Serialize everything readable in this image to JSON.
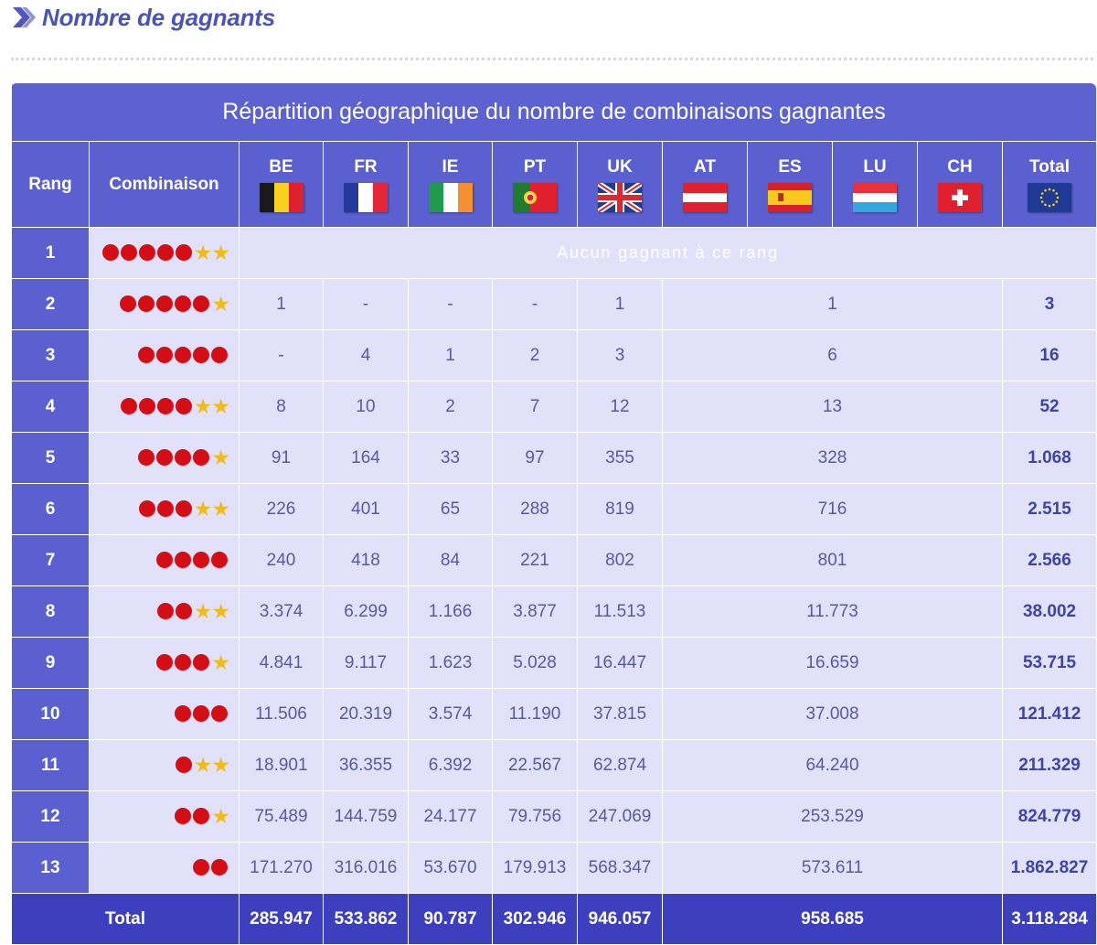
{
  "heading": {
    "text": "Nombre de gagnants"
  },
  "table": {
    "title": "Répartition géographique du nombre de combinaisons gagnantes",
    "col_rang": "Rang",
    "col_combinaison": "Combinaison",
    "countries": [
      {
        "code": "BE",
        "flag": "flag-belgium"
      },
      {
        "code": "FR",
        "flag": "flag-france"
      },
      {
        "code": "IE",
        "flag": "flag-ireland"
      },
      {
        "code": "PT",
        "flag": "flag-portugal"
      },
      {
        "code": "UK",
        "flag": "flag-uk"
      },
      {
        "code": "AT",
        "flag": "flag-austria"
      },
      {
        "code": "ES",
        "flag": "flag-spain"
      },
      {
        "code": "LU",
        "flag": "flag-luxembourg"
      },
      {
        "code": "CH",
        "flag": "flag-switzerland"
      }
    ],
    "col_total": "Total",
    "total_flag": "flag-eu",
    "no_winner_text": "Aucun gagnant à ce rang",
    "rows": [
      {
        "rang": "1",
        "balls": 5,
        "stars": 2,
        "none": true
      },
      {
        "rang": "2",
        "balls": 5,
        "stars": 1,
        "be": "1",
        "fr": "-",
        "ie": "-",
        "pt": "-",
        "uk": "1",
        "merged": "1",
        "total": "3"
      },
      {
        "rang": "3",
        "balls": 5,
        "stars": 0,
        "be": "-",
        "fr": "4",
        "ie": "1",
        "pt": "2",
        "uk": "3",
        "merged": "6",
        "total": "16"
      },
      {
        "rang": "4",
        "balls": 4,
        "stars": 2,
        "be": "8",
        "fr": "10",
        "ie": "2",
        "pt": "7",
        "uk": "12",
        "merged": "13",
        "total": "52"
      },
      {
        "rang": "5",
        "balls": 4,
        "stars": 1,
        "be": "91",
        "fr": "164",
        "ie": "33",
        "pt": "97",
        "uk": "355",
        "merged": "328",
        "total": "1.068"
      },
      {
        "rang": "6",
        "balls": 3,
        "stars": 2,
        "be": "226",
        "fr": "401",
        "ie": "65",
        "pt": "288",
        "uk": "819",
        "merged": "716",
        "total": "2.515"
      },
      {
        "rang": "7",
        "balls": 4,
        "stars": 0,
        "be": "240",
        "fr": "418",
        "ie": "84",
        "pt": "221",
        "uk": "802",
        "merged": "801",
        "total": "2.566"
      },
      {
        "rang": "8",
        "balls": 2,
        "stars": 2,
        "be": "3.374",
        "fr": "6.299",
        "ie": "1.166",
        "pt": "3.877",
        "uk": "11.513",
        "merged": "11.773",
        "total": "38.002"
      },
      {
        "rang": "9",
        "balls": 3,
        "stars": 1,
        "be": "4.841",
        "fr": "9.117",
        "ie": "1.623",
        "pt": "5.028",
        "uk": "16.447",
        "merged": "16.659",
        "total": "53.715"
      },
      {
        "rang": "10",
        "balls": 3,
        "stars": 0,
        "be": "11.506",
        "fr": "20.319",
        "ie": "3.574",
        "pt": "11.190",
        "uk": "37.815",
        "merged": "37.008",
        "total": "121.412"
      },
      {
        "rang": "11",
        "balls": 1,
        "stars": 2,
        "be": "18.901",
        "fr": "36.355",
        "ie": "6.392",
        "pt": "22.567",
        "uk": "62.874",
        "merged": "64.240",
        "total": "211.329"
      },
      {
        "rang": "12",
        "balls": 2,
        "stars": 1,
        "be": "75.489",
        "fr": "144.759",
        "ie": "24.177",
        "pt": "79.756",
        "uk": "247.069",
        "merged": "253.529",
        "total": "824.779"
      },
      {
        "rang": "13",
        "balls": 2,
        "stars": 0,
        "be": "171.270",
        "fr": "316.016",
        "ie": "53.670",
        "pt": "179.913",
        "uk": "568.347",
        "merged": "573.611",
        "total": "1.862.827"
      }
    ],
    "footer": {
      "label": "Total",
      "be": "285.947",
      "fr": "533.862",
      "ie": "90.787",
      "pt": "302.946",
      "uk": "946.057",
      "merged": "958.685",
      "total": "3.118.284"
    }
  }
}
